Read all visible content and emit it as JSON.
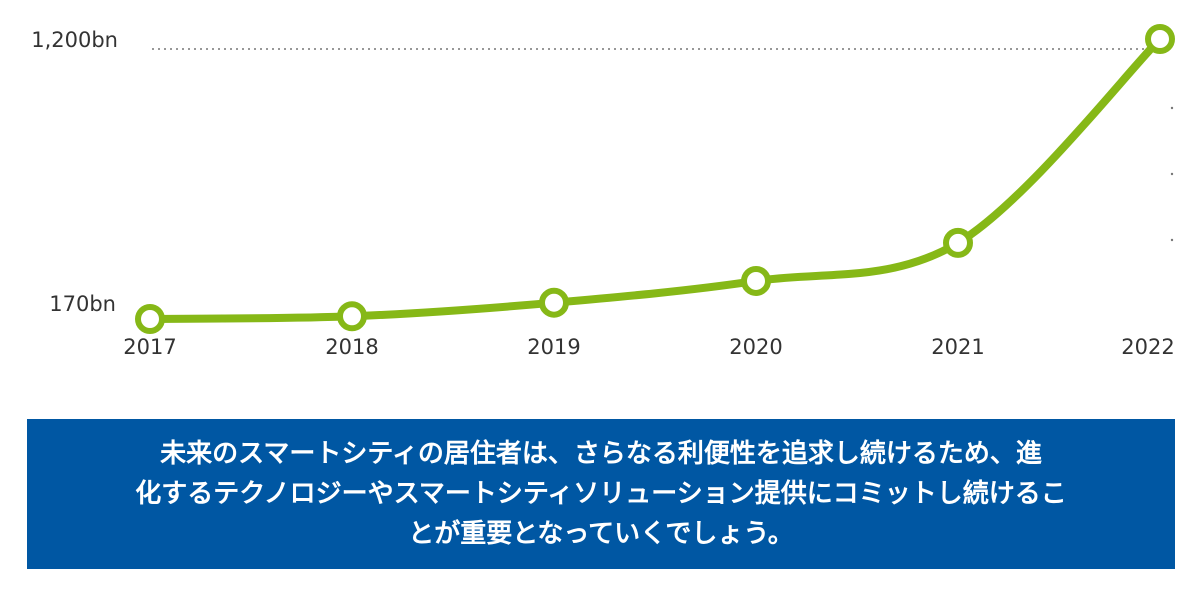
{
  "chart_data": {
    "type": "line",
    "x": [
      "2017",
      "2018",
      "2019",
      "2020",
      "2021",
      "2022"
    ],
    "series": [
      {
        "values": [
          170,
          180,
          230,
          310,
          450,
          1200
        ]
      }
    ],
    "y_tick_labels": [
      "170bn",
      "1,200bn"
    ],
    "y_tick_values": [
      170,
      1200
    ],
    "ylim": [
      170,
      1200
    ],
    "grid": false,
    "colors": {
      "line": "#86b817",
      "marker_fill": "#ffffff",
      "guide": "#777777"
    }
  },
  "banner": {
    "text": "未来のスマートシティの居住者は、さらなる利便性を追求し続けるため、進\n化するテクノロジーやスマートシティソリューション提供にコミットし続けるこ\nとが重要となっていくでしょう。",
    "background": "#0057a3"
  }
}
